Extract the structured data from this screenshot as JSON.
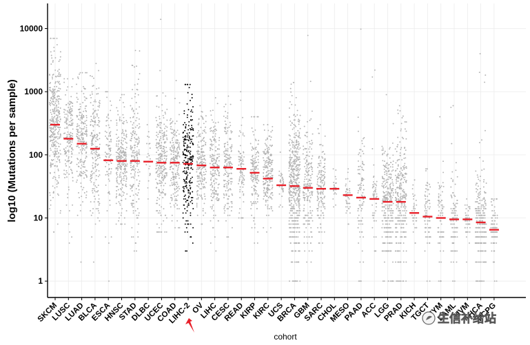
{
  "chart_data": {
    "type": "scatter",
    "subtype": "jitter-strip with median markers",
    "xlabel": "cohort",
    "ylabel": "log10 (Mutations per sample)",
    "yscale": "log10",
    "ylim": [
      0.55,
      25000
    ],
    "yticks": [
      1,
      10,
      100,
      1000,
      10000
    ],
    "ytick_labels": [
      "1",
      "10",
      "100",
      "1000",
      "10000"
    ],
    "highlight_cohort": "LIHC-2",
    "colors": {
      "points": "#b3b3b3",
      "highlight_points": "#000000",
      "median": "#e8202a",
      "arrow": "#e8202a",
      "gridlines": "#ebebeb"
    },
    "cohorts": [
      {
        "name": "SKCM",
        "median": 300,
        "lo": 6,
        "hi": 7000,
        "n": 350
      },
      {
        "name": "LUSC",
        "median": 180,
        "lo": 4,
        "hi": 1600,
        "n": 180
      },
      {
        "name": "LUAD",
        "median": 150,
        "lo": 2,
        "hi": 2000,
        "n": 230
      },
      {
        "name": "BLCA",
        "median": 125,
        "lo": 2,
        "hi": 2800,
        "n": 200
      },
      {
        "name": "ESCA",
        "median": 82,
        "lo": 1,
        "hi": 1000,
        "n": 90
      },
      {
        "name": "HNSC",
        "median": 80,
        "lo": 8,
        "hi": 900,
        "n": 250
      },
      {
        "name": "STAD",
        "median": 80,
        "lo": 3,
        "hi": 4500,
        "n": 200
      },
      {
        "name": "DLBC",
        "median": 78,
        "lo": 20,
        "hi": 300,
        "n": 20
      },
      {
        "name": "UCEC",
        "median": 75,
        "lo": 6,
        "hi": 14000,
        "n": 260
      },
      {
        "name": "COAD",
        "median": 75,
        "lo": 7,
        "hi": 1500,
        "n": 200
      },
      {
        "name": "LIHC-2",
        "median": 72,
        "lo": 3,
        "hi": 1300,
        "n": 230
      },
      {
        "name": "OV",
        "median": 68,
        "lo": 8,
        "hi": 600,
        "n": 200
      },
      {
        "name": "LIHC",
        "median": 63,
        "lo": 3,
        "hi": 800,
        "n": 190
      },
      {
        "name": "CESC",
        "median": 63,
        "lo": 5,
        "hi": 850,
        "n": 170
      },
      {
        "name": "READ",
        "median": 60,
        "lo": 10,
        "hi": 1000,
        "n": 80
      },
      {
        "name": "KIRP",
        "median": 52,
        "lo": 4,
        "hi": 400,
        "n": 150
      },
      {
        "name": "KIRC",
        "median": 42,
        "lo": 6,
        "hi": 300,
        "n": 200
      },
      {
        "name": "UCS",
        "median": 33,
        "lo": 15,
        "hi": 110,
        "n": 30
      },
      {
        "name": "BRCA",
        "median": 32,
        "lo": 1,
        "hi": 1400,
        "n": 500
      },
      {
        "name": "GBM",
        "median": 30,
        "lo": 2,
        "hi": 7800,
        "n": 200
      },
      {
        "name": "SARC",
        "median": 29,
        "lo": 4,
        "hi": 300,
        "n": 150
      },
      {
        "name": "CHOL",
        "median": 29,
        "lo": 15,
        "hi": 60,
        "n": 20
      },
      {
        "name": "MESO",
        "median": 23,
        "lo": 8,
        "hi": 60,
        "n": 40
      },
      {
        "name": "PAAD",
        "median": 21,
        "lo": 1,
        "hi": 9800,
        "n": 100
      },
      {
        "name": "ACC",
        "median": 20,
        "lo": 3,
        "hi": 2200,
        "n": 50
      },
      {
        "name": "LGG",
        "median": 18,
        "lo": 1,
        "hi": 900,
        "n": 300
      },
      {
        "name": "PRAD",
        "median": 18,
        "lo": 1,
        "hi": 600,
        "n": 300
      },
      {
        "name": "KICH",
        "median": 12,
        "lo": 2,
        "hi": 40,
        "n": 40
      },
      {
        "name": "TGCT",
        "median": 10.5,
        "lo": 1,
        "hi": 60,
        "n": 80
      },
      {
        "name": "THYM",
        "median": 10,
        "lo": 1,
        "hi": 400,
        "n": 80
      },
      {
        "name": "LAML",
        "median": 9.5,
        "lo": 1,
        "hi": 600,
        "n": 100
      },
      {
        "name": "UVM",
        "median": 9.5,
        "lo": 2,
        "hi": 20,
        "n": 50
      },
      {
        "name": "THCA",
        "median": 8.5,
        "lo": 1,
        "hi": 4000,
        "n": 250
      },
      {
        "name": "PCPG",
        "median": 6.5,
        "lo": 1,
        "hi": 20,
        "n": 100
      }
    ]
  },
  "watermark": {
    "text": "生信补给站"
  }
}
